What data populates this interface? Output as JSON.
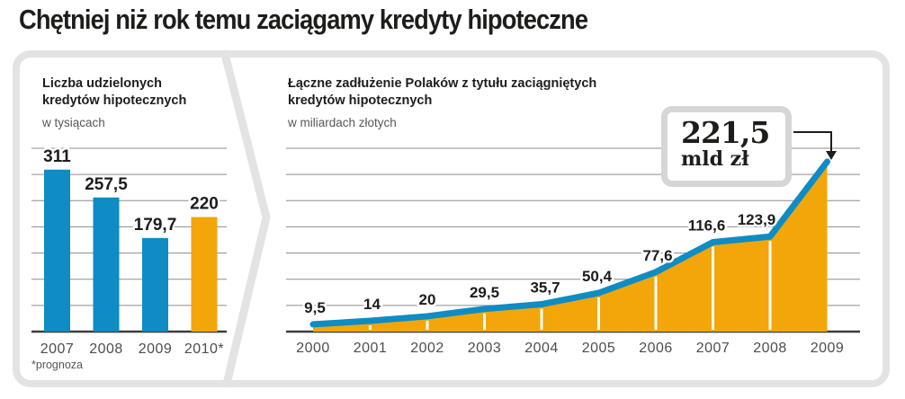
{
  "page_title": "Chętniej niż rok temu zaciągamy kredyty hipoteczne",
  "left_panel": {
    "title_line1": "Liczba udzielonych",
    "title_line2": "kredytów hipotecznych",
    "unit": "w tysiącach",
    "footnote": "*prognoza"
  },
  "right_panel": {
    "title_line1": "Łączne zadłużenie Polaków z tytułu zaciągniętych",
    "title_line2": "kredytów hipotecznych",
    "unit": "w miliardach złotych"
  },
  "colors": {
    "bar_blue": "#0e8cc3",
    "highlight_orange": "#f2a60a",
    "line_blue": "#0e8cc3",
    "area_orange": "#f2a60a",
    "grid": "#8c8c8c",
    "axis": "#3c3c3c",
    "frame": "#e3e3e3",
    "text_dark": "#1d1d1b",
    "text_gray": "#575756",
    "arrow": "#1d1d1b"
  },
  "chart_data": [
    {
      "type": "bar",
      "title": "Liczba udzielonych kredytów hipotecznych",
      "unit": "w tysiącach",
      "categories": [
        "2007",
        "2008",
        "2009",
        "2010*"
      ],
      "values": [
        311,
        257.5,
        179.7,
        220
      ],
      "value_labels": [
        "311",
        "257,5",
        "179,7",
        "220"
      ],
      "highlight_index": 3,
      "footnote": "*prognoza",
      "ylim": [
        0,
        352
      ],
      "grid": "horizontal"
    },
    {
      "type": "area",
      "title": "Łączne zadłużenie Polaków z tytułu zaciągniętych kredytów hipotecznych",
      "unit": "w miliardach złotych",
      "x": [
        "2000",
        "2001",
        "2002",
        "2003",
        "2004",
        "2005",
        "2006",
        "2007",
        "2008",
        "2009"
      ],
      "values": [
        9.5,
        14,
        20,
        29.5,
        35.7,
        50.4,
        77.6,
        116.6,
        123.9,
        221.5
      ],
      "value_labels": [
        "9,5",
        "14",
        "20",
        "29,5",
        "35,7",
        "50,4",
        "77,6",
        "116,6",
        "123,9"
      ],
      "callout": {
        "value": "221,5",
        "unit": "mld zł",
        "points_to": "2009"
      },
      "ylim": [
        0,
        239
      ],
      "grid": "horizontal"
    }
  ]
}
